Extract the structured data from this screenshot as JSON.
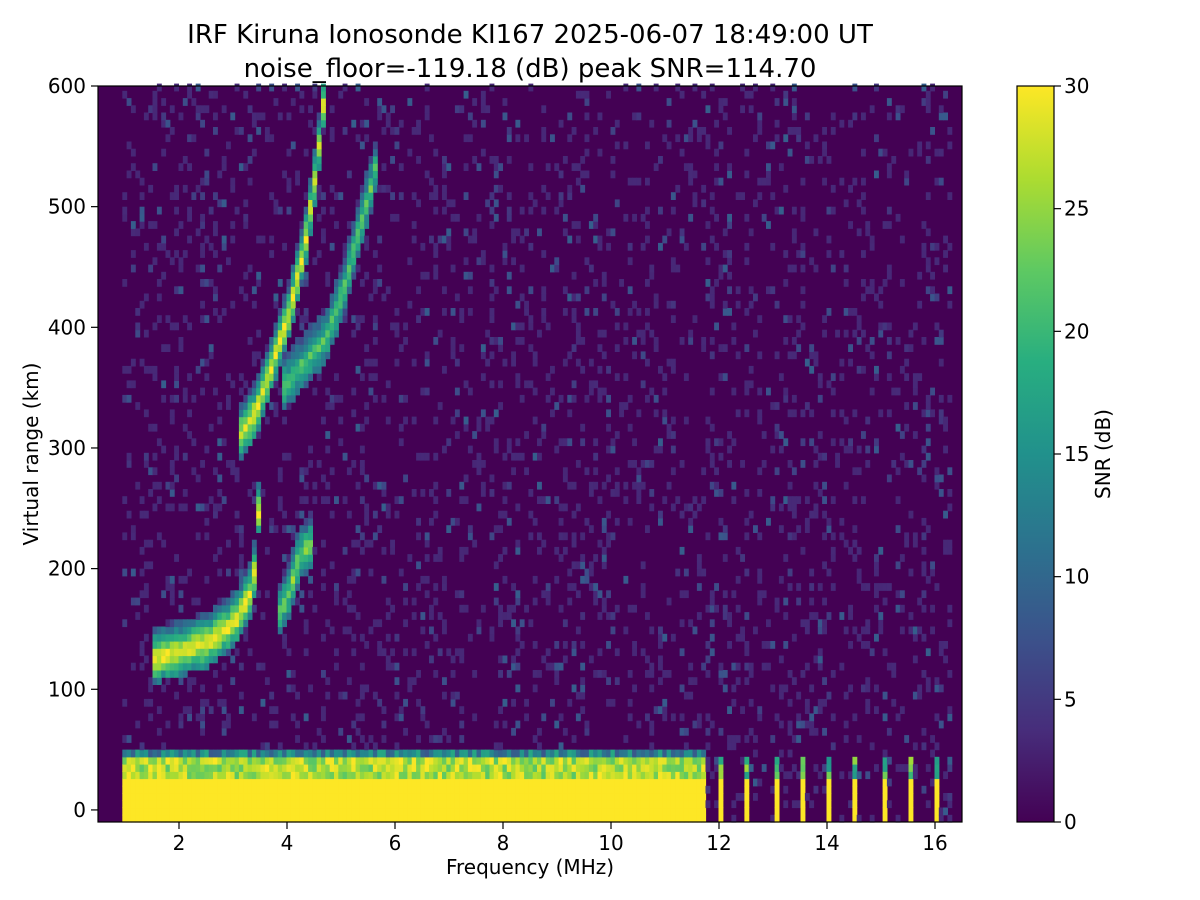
{
  "chart_data": {
    "type": "heatmap",
    "title_line1": "IRF Kiruna Ionosonde KI167 2025-06-07 18:49:00  UT",
    "title_line2": "noise_floor=-119.18 (dB) peak SNR=114.70",
    "xlabel": "Frequency (MHz)",
    "ylabel": "Virtual range (km)",
    "colorbar_label": "SNR (dB)",
    "colormap": "viridis",
    "xlim": [
      0.5,
      16.5
    ],
    "ylim": [
      -10,
      600
    ],
    "clim": [
      0,
      30
    ],
    "xticks": [
      2,
      4,
      6,
      8,
      10,
      12,
      14,
      16
    ],
    "yticks": [
      0,
      100,
      200,
      300,
      400,
      500,
      600
    ],
    "cticks": [
      0,
      5,
      10,
      15,
      20,
      25,
      30
    ],
    "data_freq_range_mhz": [
      0.95,
      16.25
    ],
    "background_snr_db": 1,
    "features": [
      {
        "name": "ground-clutter",
        "freq": [
          0.95,
          11.7
        ],
        "range": [
          -10,
          48
        ],
        "snr": 30
      },
      {
        "name": "e-layer-trace",
        "points": [
          [
            1.5,
            115
          ],
          [
            2.0,
            120
          ],
          [
            2.5,
            128
          ],
          [
            3.0,
            145
          ],
          [
            3.3,
            170
          ],
          [
            3.4,
            200
          ],
          [
            3.45,
            260
          ]
        ],
        "snr": 28
      },
      {
        "name": "es-layer-trace",
        "points": [
          [
            3.8,
            150
          ],
          [
            4.0,
            170
          ],
          [
            4.2,
            200
          ],
          [
            4.4,
            210
          ]
        ],
        "snr": 22
      },
      {
        "name": "f-layer-trace-o",
        "points": [
          [
            3.1,
            300
          ],
          [
            3.4,
            320
          ],
          [
            3.7,
            360
          ],
          [
            4.0,
            400
          ],
          [
            4.3,
            460
          ],
          [
            4.5,
            520
          ],
          [
            4.7,
            600
          ]
        ],
        "snr": 28
      },
      {
        "name": "f-layer-trace-x",
        "points": [
          [
            3.9,
            340
          ],
          [
            4.3,
            360
          ],
          [
            4.7,
            380
          ],
          [
            5.0,
            420
          ],
          [
            5.3,
            470
          ],
          [
            5.6,
            520
          ]
        ],
        "snr": 20
      },
      {
        "name": "high-freq-pulses",
        "freq": [
          11.7,
          16.1
        ],
        "range": [
          -10,
          40
        ],
        "snr": 30
      }
    ]
  }
}
